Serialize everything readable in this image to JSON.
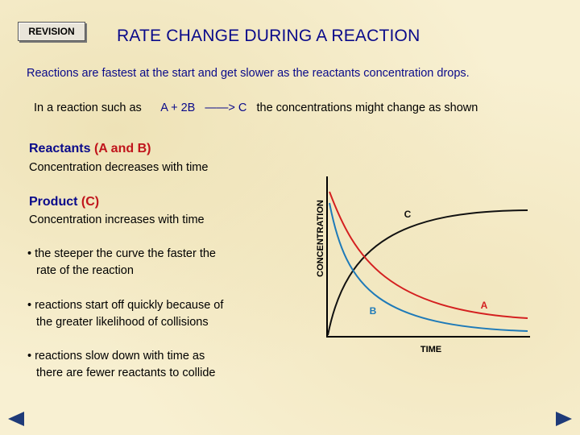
{
  "header": {
    "revision_label": "REVISION",
    "title": "RATE CHANGE DURING A REACTION"
  },
  "intro": "Reactions are fastest at the start and  get slower as the  reactants concentration drops.",
  "reaction": {
    "prefix": "In a reaction such as",
    "equation": "A  +  2B",
    "arrow": "——> C",
    "suffix": "the concentrations might change as shown"
  },
  "reactants": {
    "heading_main": "Reactants",
    "heading_rest": "(A and B)",
    "description": "Concentration decreases with time"
  },
  "product": {
    "heading_main": "Product",
    "heading_rest": "(C)",
    "description": "Concentration increases with time"
  },
  "bullets": [
    {
      "line1": "• the steeper the curve the faster the",
      "line2": "rate of the reaction"
    },
    {
      "line1": "• reactions start off quickly because of",
      "line2": "the greater likelihood of collisions"
    },
    {
      "line1": "• reactions slow down with time as",
      "line2": "there are fewer reactants to collide"
    }
  ],
  "graph": {
    "y_axis_label": "CONCENTRATION",
    "x_axis_label": "TIME",
    "curves": [
      {
        "name": "C",
        "color": "#111111",
        "kind": "rising"
      },
      {
        "name": "A",
        "color": "#d42020",
        "kind": "falling-slow"
      },
      {
        "name": "B",
        "color": "#1e7ab8",
        "kind": "falling-fast"
      }
    ]
  }
}
